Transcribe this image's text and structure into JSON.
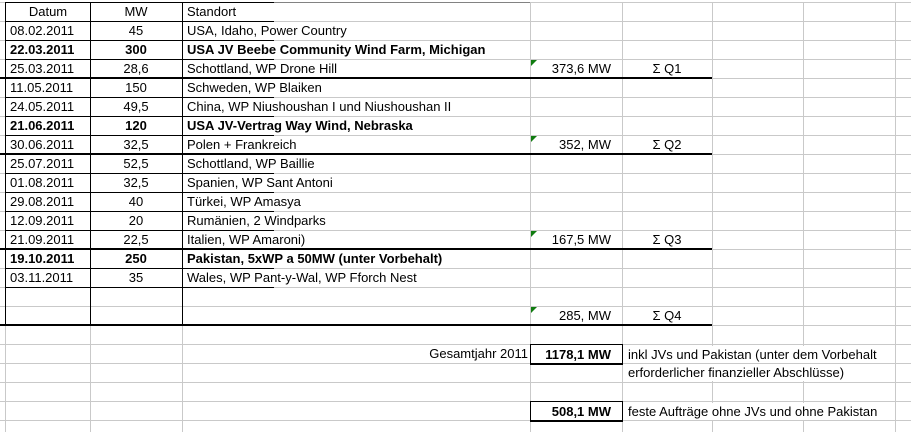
{
  "sheet": {
    "header": {
      "datum": "Datum",
      "mw": "MW",
      "standort": "Standort"
    },
    "rows": [
      {
        "datum": "08.02.2011",
        "mw": "45",
        "standort": "USA, Idaho, Power Country"
      },
      {
        "datum": "22.03.2011",
        "mw": "300",
        "standort": "USA JV Beebe Community Wind Farm, Michigan"
      },
      {
        "datum": "25.03.2011",
        "mw": "28,6",
        "standort": "Schottland, WP Drone Hill"
      },
      {
        "datum": "11.05.2011",
        "mw": "150",
        "standort": "Schweden, WP Blaiken"
      },
      {
        "datum": "24.05.2011",
        "mw": "49,5",
        "standort": "China, WP Niushoushan I und Niushoushan II"
      },
      {
        "datum": "21.06.2011",
        "mw": "120",
        "standort": "USA JV-Vertrag Way Wind, Nebraska"
      },
      {
        "datum": "30.06.2011",
        "mw": "32,5",
        "standort": "Polen + Frankreich"
      },
      {
        "datum": "25.07.2011",
        "mw": "52,5",
        "standort": "Schottland, WP Baillie"
      },
      {
        "datum": "01.08.2011",
        "mw": "32,5",
        "standort": "Spanien, WP Sant Antoni"
      },
      {
        "datum": "29.08.2011",
        "mw": "40",
        "standort": "Türkei, WP Amasya"
      },
      {
        "datum": "12.09.2011",
        "mw": "20",
        "standort": "Rumänien, 2 Windparks"
      },
      {
        "datum": "21.09.2011",
        "mw": "22,5",
        "standort": "Italien, WP Amaroni)"
      },
      {
        "datum": "19.10.2011",
        "mw": "250",
        "standort": "Pakistan, 5xWP a 50MW (unter Vorbehalt)"
      },
      {
        "datum": "03.11.2011",
        "mw": "35",
        "standort": "Wales, WP Pant-y-Wal, WP Fforch Nest"
      }
    ],
    "quarters": {
      "q1": {
        "sum": "373,6 MW",
        "label": "Σ Q1"
      },
      "q2": {
        "sum": "352, MW",
        "label": "Σ Q2"
      },
      "q3": {
        "sum": "167,5 MW",
        "label": "Σ Q3"
      },
      "q4": {
        "sum": "285, MW",
        "label": "Σ Q4"
      }
    },
    "totals": {
      "year_label": "Gesamtjahr 2011",
      "total_with_jv": "1178,1 MW",
      "total_with_jv_note1": "inkl JVs und Pakistan (unter dem Vorbehalt",
      "total_with_jv_note2": "erforderlicher finanzieller Abschlüsse)",
      "total_firm": "508,1 MW",
      "total_firm_note": "feste Aufträge ohne JVs und ohne Pakistan"
    },
    "colors": {
      "gridline": "#c9c9c9",
      "table_border": "#000000",
      "error_indicator": "#0f7b0f"
    }
  }
}
